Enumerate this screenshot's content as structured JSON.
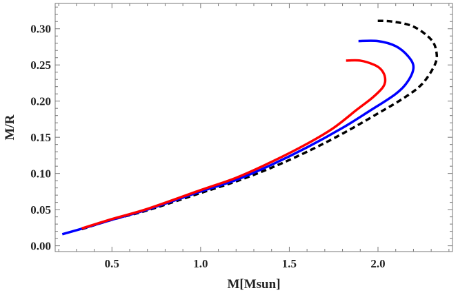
{
  "chart_data": {
    "type": "line",
    "title": "",
    "xlabel": "M[Msun]",
    "ylabel": "M/R",
    "xlim": [
      0.18,
      2.42
    ],
    "ylim": [
      -0.008,
      0.335
    ],
    "xticks": [
      "0.5",
      "1.0",
      "1.5",
      "2.0"
    ],
    "xtick_values": [
      0.5,
      1.0,
      1.5,
      2.0
    ],
    "yticks": [
      "0.00",
      "0.05",
      "0.10",
      "0.15",
      "0.20",
      "0.25",
      "0.30"
    ],
    "ytick_values": [
      0.0,
      0.05,
      0.1,
      0.15,
      0.2,
      0.25,
      0.3
    ],
    "grid": false,
    "series": [
      {
        "color": "#000000",
        "style": "dashed",
        "points": [
          [
            0.33,
            0.023
          ],
          [
            0.5,
            0.036
          ],
          [
            0.7,
            0.049
          ],
          [
            1.0,
            0.073
          ],
          [
            1.2,
            0.089
          ],
          [
            1.4,
            0.108
          ],
          [
            1.6,
            0.13
          ],
          [
            1.8,
            0.155
          ],
          [
            2.0,
            0.183
          ],
          [
            2.15,
            0.205
          ],
          [
            2.25,
            0.224
          ],
          [
            2.32,
            0.25
          ],
          [
            2.33,
            0.267
          ],
          [
            2.3,
            0.285
          ],
          [
            2.2,
            0.303
          ],
          [
            2.08,
            0.31
          ],
          [
            1.98,
            0.311
          ]
        ]
      },
      {
        "color": "#0000ff",
        "style": "solid",
        "points": [
          [
            0.22,
            0.016
          ],
          [
            0.35,
            0.025
          ],
          [
            0.5,
            0.036
          ],
          [
            0.7,
            0.05
          ],
          [
            1.0,
            0.075
          ],
          [
            1.2,
            0.091
          ],
          [
            1.4,
            0.112
          ],
          [
            1.6,
            0.136
          ],
          [
            1.8,
            0.163
          ],
          [
            1.95,
            0.186
          ],
          [
            2.1,
            0.21
          ],
          [
            2.17,
            0.228
          ],
          [
            2.2,
            0.247
          ],
          [
            2.17,
            0.262
          ],
          [
            2.1,
            0.276
          ],
          [
            2.0,
            0.283
          ],
          [
            1.89,
            0.283
          ]
        ]
      },
      {
        "color": "#ff0000",
        "style": "solid",
        "points": [
          [
            0.33,
            0.024
          ],
          [
            0.5,
            0.037
          ],
          [
            0.7,
            0.051
          ],
          [
            1.0,
            0.077
          ],
          [
            1.2,
            0.094
          ],
          [
            1.4,
            0.116
          ],
          [
            1.6,
            0.141
          ],
          [
            1.75,
            0.163
          ],
          [
            1.88,
            0.188
          ],
          [
            1.97,
            0.205
          ],
          [
            2.03,
            0.22
          ],
          [
            2.04,
            0.232
          ],
          [
            2.02,
            0.243
          ],
          [
            1.98,
            0.25
          ],
          [
            1.9,
            0.256
          ],
          [
            1.82,
            0.256
          ]
        ]
      }
    ]
  }
}
